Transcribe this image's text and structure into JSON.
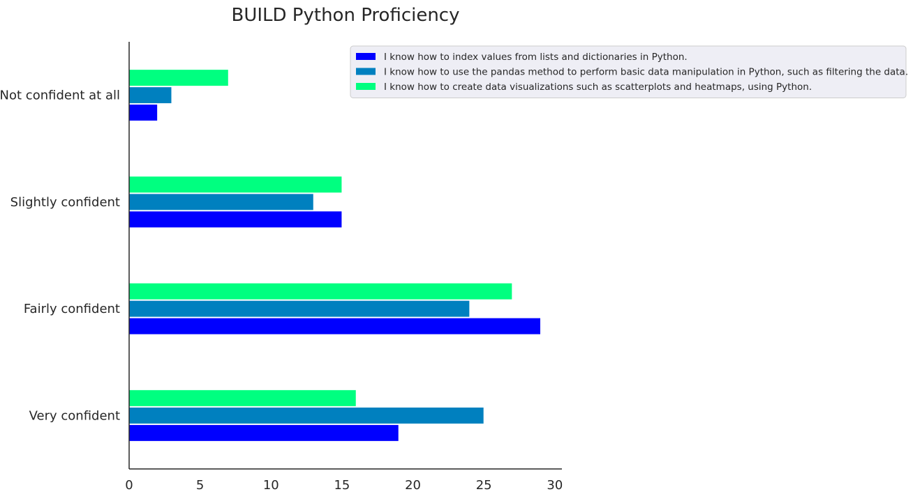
{
  "chart_data": {
    "type": "bar",
    "orientation": "horizontal",
    "title": "BUILD Python Proficiency",
    "xlabel": "",
    "ylabel": "",
    "xlim": [
      0,
      30.5
    ],
    "xticks": [
      0,
      5,
      10,
      15,
      20,
      25,
      30
    ],
    "grid": false,
    "legend_position": "top-right",
    "categories": [
      "Very confident",
      "Fairly confident",
      "Slightly confident",
      "Not confident at all"
    ],
    "series": [
      {
        "name": "I know how to index values from lists and dictionaries in Python.",
        "color": "#0000ff",
        "values": [
          19,
          29,
          15,
          2
        ]
      },
      {
        "name": "I know how to use the pandas method to perform basic data manipulation in Python, such as filtering the data.",
        "color": "#0080bf",
        "values": [
          25,
          24,
          13,
          3
        ]
      },
      {
        "name": "I know how to create data visualizations such as scatterplots and heatmaps, using Python.",
        "color": "#00ff80",
        "values": [
          16,
          27,
          15,
          7
        ]
      }
    ]
  }
}
